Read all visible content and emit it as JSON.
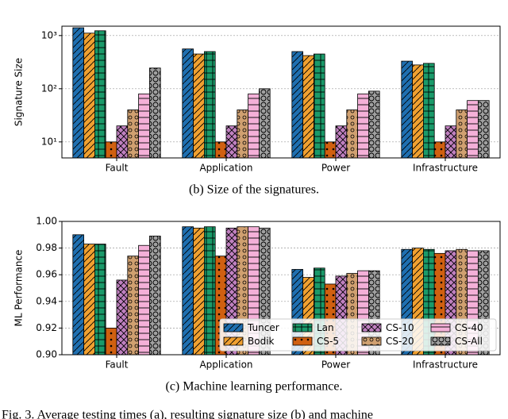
{
  "charts_caption": "Fig. 3.   Average testing times (a), resulting signature size (b) and machine",
  "chart_data": [
    {
      "type": "bar",
      "caption": "(b) Size of the signatures.",
      "ylabel": "Signature Size",
      "log_scale": true,
      "grid": true,
      "legend": false,
      "categories": [
        "Fault",
        "Application",
        "Power",
        "Infrastructure"
      ],
      "ylim": [
        5,
        1500
      ],
      "yticks": [
        {
          "value": 10,
          "label": "10¹"
        },
        {
          "value": 100,
          "label": "10²"
        },
        {
          "value": 1000,
          "label": "10³"
        }
      ],
      "series": [
        {
          "name": "Tuncer",
          "color": "#1f6fb0",
          "hatch": "/",
          "values": [
            1400,
            560,
            500,
            330
          ]
        },
        {
          "name": "Bodik",
          "color": "#f0a030",
          "hatch": "//",
          "values": [
            1110,
            450,
            420,
            280
          ]
        },
        {
          "name": "Lan",
          "color": "#1a9a6a",
          "hatch": "+",
          "values": [
            1230,
            500,
            450,
            300
          ]
        },
        {
          "name": "CS-5",
          "color": "#d06010",
          "hatch": ".",
          "values": [
            10,
            10,
            10,
            10
          ]
        },
        {
          "name": "CS-10",
          "color": "#c080c0",
          "hatch": "x",
          "values": [
            20,
            20,
            20,
            20
          ]
        },
        {
          "name": "CS-20",
          "color": "#d0a070",
          "hatch": "o",
          "values": [
            40,
            40,
            40,
            40
          ]
        },
        {
          "name": "CS-40",
          "color": "#f4b0d8",
          "hatch": "-",
          "values": [
            80,
            80,
            80,
            60
          ]
        },
        {
          "name": "CS-All",
          "color": "#a0a0a0",
          "hatch": "O",
          "values": [
            245,
            100,
            90,
            60
          ]
        }
      ]
    },
    {
      "type": "bar",
      "caption": "(c) Machine learning performance.",
      "ylabel": "ML Performance",
      "log_scale": false,
      "grid": true,
      "legend": "lower right",
      "categories": [
        "Fault",
        "Application",
        "Power",
        "Infrastructure"
      ],
      "ylim": [
        0.9,
        1.0
      ],
      "yticks": [
        {
          "value": 0.9,
          "label": "0.90"
        },
        0.92,
        0.94,
        0.96,
        0.98,
        {
          "value": 1.0,
          "label": "1.00"
        }
      ],
      "series": [
        {
          "name": "Tuncer",
          "color": "#1f6fb0",
          "hatch": "/",
          "values": [
            0.99,
            0.996,
            0.964,
            0.979
          ]
        },
        {
          "name": "Bodik",
          "color": "#f0a030",
          "hatch": "//",
          "values": [
            0.983,
            0.995,
            0.958,
            0.98
          ]
        },
        {
          "name": "Lan",
          "color": "#1a9a6a",
          "hatch": "+",
          "values": [
            0.983,
            0.996,
            0.965,
            0.979
          ]
        },
        {
          "name": "CS-5",
          "color": "#d06010",
          "hatch": ".",
          "values": [
            0.92,
            0.974,
            0.953,
            0.976
          ]
        },
        {
          "name": "CS-10",
          "color": "#c080c0",
          "hatch": "x",
          "values": [
            0.956,
            0.995,
            0.959,
            0.978
          ]
        },
        {
          "name": "CS-20",
          "color": "#d0a070",
          "hatch": "o",
          "values": [
            0.974,
            0.996,
            0.961,
            0.979
          ]
        },
        {
          "name": "CS-40",
          "color": "#f4b0d8",
          "hatch": "-",
          "values": [
            0.982,
            0.996,
            0.963,
            0.978
          ]
        },
        {
          "name": "CS-All",
          "color": "#a0a0a0",
          "hatch": "O",
          "values": [
            0.989,
            0.995,
            0.963,
            0.978
          ]
        }
      ]
    }
  ]
}
